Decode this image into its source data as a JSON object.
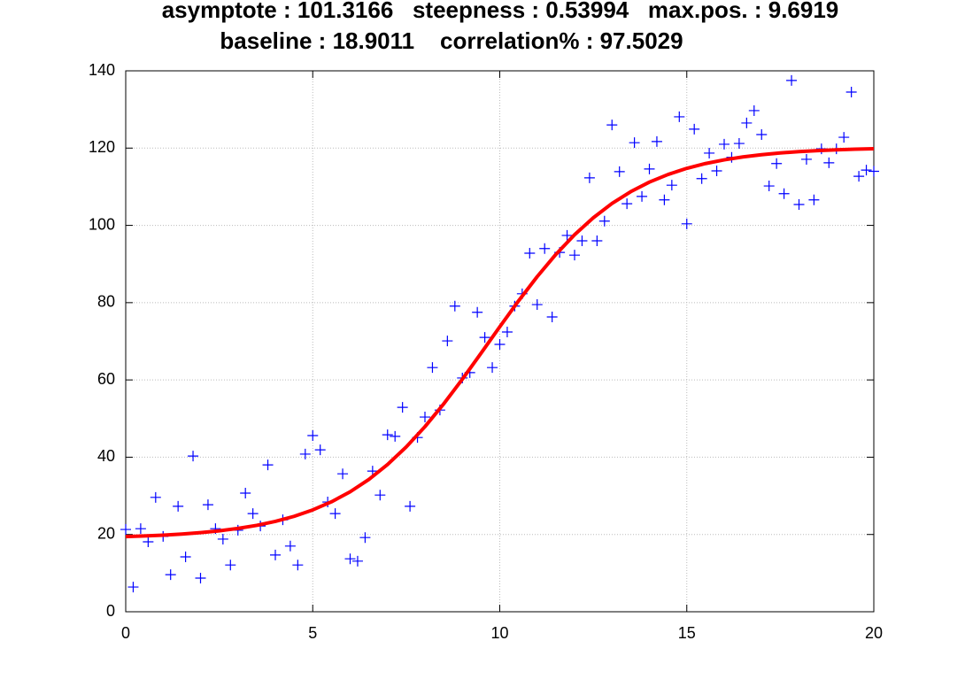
{
  "chart_data": {
    "type": "scatter",
    "title": [
      "asymptote : 101.3166   steepness : 0.53994   max.pos. : 9.6919",
      "baseline : 18.9011    correlation% : 97.5029"
    ],
    "xlim": [
      0,
      20
    ],
    "xticks": [
      0,
      5,
      10,
      15,
      20
    ],
    "ylim": [
      0,
      140
    ],
    "yticks": [
      0,
      20,
      40,
      60,
      80,
      100,
      120,
      140
    ],
    "grid": true,
    "series": [
      {
        "style": "marker",
        "color": "#0000ff",
        "x": [
          0,
          0.2,
          0.4,
          0.6,
          0.8,
          1,
          1.2,
          1.4,
          1.6,
          1.8,
          2,
          2.2,
          2.4,
          2.6,
          2.8,
          3,
          3.2,
          3.4,
          3.6,
          3.8,
          4,
          4.2,
          4.4,
          4.6,
          4.8,
          5,
          5.2,
          5.4,
          5.6,
          5.8,
          6,
          6.2,
          6.4,
          6.6,
          6.8,
          7,
          7.2,
          7.4,
          7.6,
          7.8,
          8,
          8.2,
          8.4,
          8.6,
          8.8,
          9,
          9.2,
          9.4,
          9.6,
          9.8,
          10,
          10.2,
          10.4,
          10.6,
          10.8,
          11,
          11.2,
          11.4,
          11.6,
          11.8,
          12,
          12.2,
          12.4,
          12.6,
          12.8,
          13,
          13.2,
          13.4,
          13.6,
          13.8,
          14,
          14.2,
          14.4,
          14.6,
          14.8,
          15,
          15.2,
          15.4,
          15.6,
          15.8,
          16,
          16.2,
          16.4,
          16.6,
          16.8,
          17,
          17.2,
          17.4,
          17.6,
          17.8,
          18,
          18.2,
          18.4,
          18.6,
          18.8,
          19,
          19.2,
          19.4,
          19.6,
          19.8,
          20
        ],
        "values": [
          21.3,
          6.4,
          21.5,
          18.1,
          29.6,
          19.5,
          9.6,
          27.3,
          14.2,
          40.3,
          8.7,
          27.7,
          21.5,
          18.8,
          12.1,
          21.1,
          30.7,
          25.4,
          22.2,
          38.0,
          14.7,
          23.8,
          17.0,
          12.1,
          40.8,
          45.6,
          41.9,
          28.4,
          25.4,
          35.7,
          13.7,
          13.1,
          19.2,
          36.4,
          30.2,
          45.8,
          45.4,
          52.9,
          27.3,
          45.1,
          50.4,
          63.2,
          52.2,
          70.1,
          79.1,
          60.5,
          61.9,
          77.5,
          71.0,
          63.2,
          69.2,
          72.4,
          79.1,
          82.3,
          92.8,
          79.5,
          94.0,
          76.3,
          93.0,
          97.4,
          92.3,
          96.0,
          112.3,
          96.0,
          101.1,
          126.0,
          113.9,
          105.6,
          121.4,
          107.5,
          114.6,
          121.7,
          106.6,
          110.4,
          128.1,
          100.4,
          124.9,
          112.1,
          118.7,
          114.1,
          121.0,
          117.6,
          121.2,
          126.5,
          129.7,
          123.5,
          110.2,
          116.0,
          108.2,
          137.5,
          105.4,
          117.1,
          106.6,
          119.8,
          116.2,
          119.8,
          122.8,
          134.5,
          112.7,
          114.3,
          114.0
        ]
      },
      {
        "style": "line",
        "color": "#ff0000",
        "x": [
          0,
          0.5,
          1,
          1.5,
          2,
          2.5,
          3,
          3.5,
          4,
          4.5,
          5,
          5.5,
          6,
          6.5,
          7,
          7.5,
          8,
          8.5,
          9,
          9.5,
          10,
          10.5,
          11,
          11.5,
          12,
          12.5,
          13,
          13.5,
          14,
          14.5,
          15,
          15.5,
          16,
          16.5,
          17,
          17.5,
          18,
          18.5,
          19,
          19.5,
          20
        ],
        "values": [
          19.44,
          19.61,
          19.82,
          20.1,
          20.47,
          20.94,
          21.56,
          22.36,
          23.38,
          24.69,
          26.36,
          28.45,
          31.05,
          34.25,
          38.1,
          42.66,
          47.9,
          53.79,
          60.2,
          66.93,
          73.75,
          80.43,
          86.73,
          92.49,
          97.58,
          101.97,
          105.67,
          108.72,
          111.2,
          113.18,
          114.76,
          116.0,
          116.96,
          117.72,
          118.3,
          118.74,
          119.09,
          119.35,
          119.56,
          119.71,
          119.83
        ]
      }
    ]
  }
}
